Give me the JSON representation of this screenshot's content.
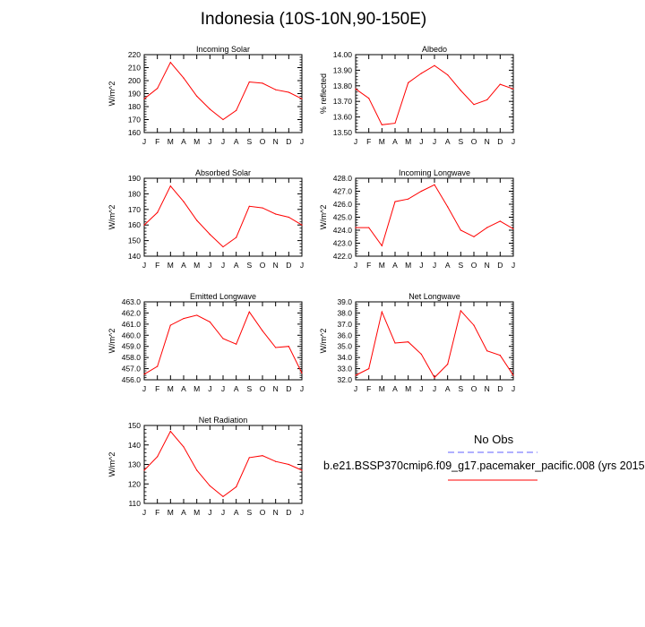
{
  "title": "Indonesia (10S-10N,90-150E)",
  "legend": {
    "obs_label": "No Obs",
    "obs_color": "#8080ff",
    "model_label": "b.e21.BSSP370cmip6.f09_g17.pacemaker_pacific.008 (yrs 2015",
    "model_color": "#ff0000"
  },
  "chart_data": [
    {
      "type": "line",
      "title": "Incoming Solar",
      "ylabel": "W/m^2",
      "ylim": [
        160,
        220
      ],
      "yticks": [
        "160",
        "170",
        "180",
        "190",
        "200",
        "210",
        "220"
      ],
      "categories": [
        "J",
        "F",
        "M",
        "A",
        "M",
        "J",
        "J",
        "A",
        "S",
        "O",
        "N",
        "D",
        "J"
      ],
      "series": [
        {
          "values": [
            186,
            194,
            214,
            202,
            188,
            178,
            170,
            177,
            199,
            198,
            193,
            191,
            186
          ],
          "color": "#ff0000"
        }
      ]
    },
    {
      "type": "line",
      "title": "Albedo",
      "ylabel": "% reflected",
      "ylim": [
        13.5,
        14.0
      ],
      "yticks": [
        "13.50",
        "13.60",
        "13.70",
        "13.80",
        "13.90",
        "14.00"
      ],
      "categories": [
        "J",
        "F",
        "M",
        "A",
        "M",
        "J",
        "J",
        "A",
        "S",
        "O",
        "N",
        "D",
        "J"
      ],
      "series": [
        {
          "values": [
            13.78,
            13.72,
            13.55,
            13.56,
            13.82,
            13.88,
            13.93,
            13.87,
            13.77,
            13.68,
            13.71,
            13.81,
            13.78
          ],
          "color": "#ff0000"
        }
      ]
    },
    {
      "type": "line",
      "title": "Absorbed Solar",
      "ylabel": "W/m^2",
      "ylim": [
        140,
        190
      ],
      "yticks": [
        "140",
        "150",
        "160",
        "170",
        "180",
        "190"
      ],
      "categories": [
        "J",
        "F",
        "M",
        "A",
        "M",
        "J",
        "J",
        "A",
        "S",
        "O",
        "N",
        "D",
        "J"
      ],
      "series": [
        {
          "values": [
            160,
            168,
            185,
            175,
            163,
            154,
            146,
            152,
            172,
            171,
            167,
            165,
            160
          ],
          "color": "#ff0000"
        }
      ]
    },
    {
      "type": "line",
      "title": "Incoming Longwave",
      "ylabel": "W/m^2",
      "ylim": [
        422.0,
        428.0
      ],
      "yticks": [
        "422.0",
        "423.0",
        "424.0",
        "425.0",
        "426.0",
        "427.0",
        "428.0"
      ],
      "categories": [
        "J",
        "F",
        "M",
        "A",
        "M",
        "J",
        "J",
        "A",
        "S",
        "O",
        "N",
        "D",
        "J"
      ],
      "series": [
        {
          "values": [
            424.2,
            424.2,
            422.8,
            426.2,
            426.4,
            427.0,
            427.5,
            425.8,
            424.0,
            423.5,
            424.2,
            424.7,
            424.1
          ],
          "color": "#ff0000"
        }
      ]
    },
    {
      "type": "line",
      "title": "Emitted Longwave",
      "ylabel": "W/m^2",
      "ylim": [
        456.0,
        463.0
      ],
      "yticks": [
        "456.0",
        "457.0",
        "458.0",
        "459.0",
        "460.0",
        "461.0",
        "462.0",
        "463.0"
      ],
      "categories": [
        "J",
        "F",
        "M",
        "A",
        "M",
        "J",
        "J",
        "A",
        "S",
        "O",
        "N",
        "D",
        "J"
      ],
      "series": [
        {
          "values": [
            456.5,
            457.2,
            460.9,
            461.5,
            461.8,
            461.2,
            459.7,
            459.2,
            462.1,
            460.4,
            458.9,
            459.0,
            456.6
          ],
          "color": "#ff0000"
        }
      ]
    },
    {
      "type": "line",
      "title": "Net Longwave",
      "ylabel": "W/m^2",
      "ylim": [
        32.0,
        39.0
      ],
      "yticks": [
        "32.0",
        "33.0",
        "34.0",
        "35.0",
        "36.0",
        "37.0",
        "38.0",
        "39.0"
      ],
      "categories": [
        "J",
        "F",
        "M",
        "A",
        "M",
        "J",
        "J",
        "A",
        "S",
        "O",
        "N",
        "D",
        "J"
      ],
      "series": [
        {
          "values": [
            32.4,
            33.0,
            38.1,
            35.3,
            35.4,
            34.3,
            32.2,
            33.4,
            38.2,
            36.9,
            34.6,
            34.2,
            32.4
          ],
          "color": "#ff0000"
        }
      ]
    },
    {
      "type": "line",
      "title": "Net Radiation",
      "ylabel": "W/m^2",
      "ylim": [
        110,
        150
      ],
      "yticks": [
        "110",
        "120",
        "130",
        "140",
        "150"
      ],
      "categories": [
        "J",
        "F",
        "M",
        "A",
        "M",
        "J",
        "J",
        "A",
        "S",
        "O",
        "N",
        "D",
        "J"
      ],
      "series": [
        {
          "values": [
            127,
            134,
            147,
            139,
            127,
            119,
            113.5,
            118.5,
            133.5,
            134.5,
            131.5,
            130,
            127
          ],
          "color": "#ff0000"
        }
      ]
    }
  ]
}
